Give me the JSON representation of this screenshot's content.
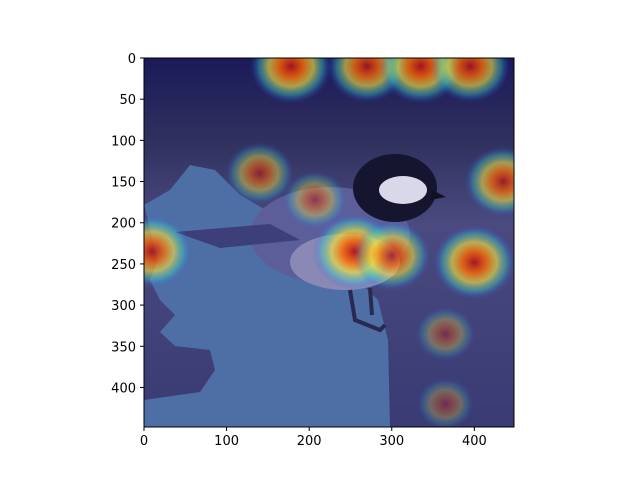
{
  "image": {
    "subject": "bird",
    "overlay": "heatmap"
  },
  "axes": {
    "x_ticks": [
      "0",
      "100",
      "200",
      "300",
      "400"
    ],
    "y_ticks": [
      "0",
      "50",
      "100",
      "150",
      "200",
      "250",
      "300",
      "350",
      "400"
    ]
  },
  "chart_data": {
    "type": "heatmap",
    "xlim": [
      0,
      448
    ],
    "ylim": [
      448,
      0
    ],
    "x_ticks": [
      0,
      100,
      200,
      300,
      400
    ],
    "y_ticks": [
      0,
      50,
      100,
      150,
      200,
      250,
      300,
      350,
      400
    ],
    "grid": false,
    "colormap": "jet",
    "hotspots": [
      {
        "x": 178,
        "y": 10,
        "intensity": 0.95
      },
      {
        "x": 270,
        "y": 10,
        "intensity": 0.9
      },
      {
        "x": 335,
        "y": 10,
        "intensity": 0.95
      },
      {
        "x": 395,
        "y": 10,
        "intensity": 0.9
      },
      {
        "x": 140,
        "y": 140,
        "intensity": 0.65
      },
      {
        "x": 435,
        "y": 150,
        "intensity": 0.85
      },
      {
        "x": 10,
        "y": 235,
        "intensity": 0.9
      },
      {
        "x": 255,
        "y": 235,
        "intensity": 1.0
      },
      {
        "x": 300,
        "y": 240,
        "intensity": 0.85
      },
      {
        "x": 400,
        "y": 248,
        "intensity": 0.95
      },
      {
        "x": 207,
        "y": 172,
        "intensity": 0.55
      },
      {
        "x": 365,
        "y": 335,
        "intensity": 0.45
      },
      {
        "x": 365,
        "y": 420,
        "intensity": 0.4
      }
    ]
  }
}
